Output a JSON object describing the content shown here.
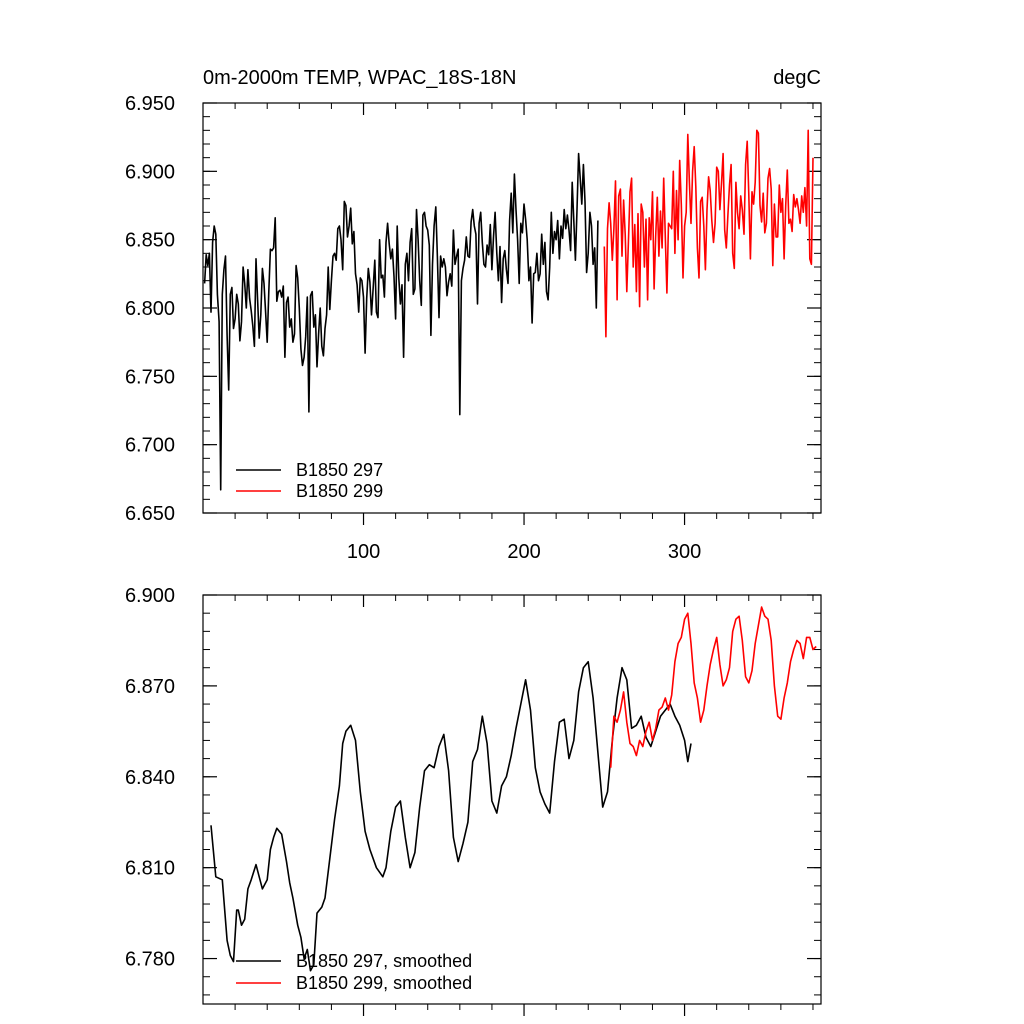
{
  "chart_data": [
    {
      "type": "line",
      "title": "0m-2000m TEMP, WPAC_18S-18N",
      "units": "degC",
      "xlabel": "",
      "ylabel": "",
      "xlim": [
        0,
        385
      ],
      "ylim": [
        6.65,
        6.95
      ],
      "x_ticks": [
        100,
        200,
        300
      ],
      "x_tick_labels": [
        "100",
        "200",
        "300"
      ],
      "y_ticks": [
        6.65,
        6.7,
        6.75,
        6.8,
        6.85,
        6.9,
        6.95
      ],
      "y_tick_labels": [
        "6.650",
        "6.700",
        "6.750",
        "6.800",
        "6.850",
        "6.900",
        "6.950"
      ],
      "legend_position": "bottom-left",
      "series": [
        {
          "name": "B1850 297",
          "color": "#000000",
          "x_start": 1,
          "values": [
            6.818,
            6.839,
            6.831,
            6.84,
            6.797,
            6.848,
            6.86,
            6.854,
            6.81,
            6.79,
            6.667,
            6.81,
            6.828,
            6.838,
            6.78,
            6.74,
            6.81,
            6.815,
            6.785,
            6.792,
            6.81,
            6.803,
            6.776,
            6.79,
            6.83,
            6.818,
            6.8,
            6.828,
            6.807,
            6.798,
            6.787,
            6.772,
            6.836,
            6.806,
            6.778,
            6.795,
            6.829,
            6.818,
            6.797,
            6.775,
            6.812,
            6.843,
            6.842,
            6.844,
            6.866,
            6.805,
            6.812,
            6.813,
            6.808,
            6.816,
            6.764,
            6.804,
            6.808,
            6.786,
            6.792,
            6.775,
            6.781,
            6.831,
            6.822,
            6.8,
            6.77,
            6.758,
            6.764,
            6.779,
            6.808,
            6.724,
            6.809,
            6.812,
            6.786,
            6.795,
            6.757,
            6.781,
            6.8,
            6.772,
            6.765,
            6.785,
            6.795,
            6.83,
            6.799,
            6.82,
            6.838,
            6.84,
            6.835,
            6.858,
            6.86,
            6.85,
            6.828,
            6.878,
            6.875,
            6.852,
            6.86,
            6.873,
            6.847,
            6.856,
            6.825,
            6.817,
            6.797,
            6.822,
            6.82,
            6.808,
            6.767,
            6.807,
            6.829,
            6.819,
            6.795,
            6.815,
            6.835,
            6.797,
            6.793,
            6.85,
            6.822,
            6.824,
            6.808,
            6.848,
            6.862,
            6.847,
            6.836,
            6.843,
            6.823,
            6.792,
            6.86,
            6.822,
            6.803,
            6.817,
            6.764,
            6.832,
            6.84,
            6.82,
            6.848,
            6.858,
            6.81,
            6.814,
            6.872,
            6.85,
            6.82,
            6.802,
            6.868,
            6.87,
            6.86,
            6.857,
            6.846,
            6.78,
            6.832,
            6.86,
            6.874,
            6.837,
            6.793,
            6.838,
            6.83,
            6.836,
            6.83,
            6.809,
            6.819,
            6.825,
            6.816,
            6.857,
            6.832,
            6.838,
            6.843,
            6.722,
            6.82,
            6.829,
            6.835,
            6.852,
            6.838,
            6.837,
            6.863,
            6.872,
            6.86,
            6.854,
            6.803,
            6.862,
            6.87,
            6.848,
            6.832,
            6.83,
            6.846,
            6.839,
            6.861,
            6.828,
            6.852,
            6.87,
            6.84,
            6.82,
            6.845,
            6.804,
            6.836,
            6.842,
            6.828,
            6.818,
            6.864,
            6.884,
            6.855,
            6.898,
            6.872,
            6.85,
            6.818,
            6.862,
            6.855,
            6.876,
            6.865,
            6.85,
            6.82,
            6.83,
            6.789,
            6.825,
            6.826,
            6.84,
            6.82,
            6.825,
            6.854,
            6.832,
            6.848,
            6.812,
            6.806,
            6.83,
            6.87,
            6.84,
            6.856,
            6.85,
            6.864,
            6.836,
            6.86,
            6.851,
            6.872,
            6.858,
            6.868,
            6.857,
            6.842,
            6.892,
            6.864,
            6.835,
            6.872,
            6.913,
            6.895,
            6.876,
            6.905,
            6.878,
            6.826,
            6.84,
            6.87,
            6.86,
            6.832,
            6.844,
            6.8,
            6.864
          ],
          "smoothed_label": "B1850 297, smoothed"
        },
        {
          "name": "B1850 299",
          "color": "#ff0000",
          "x_start": 250,
          "values": [
            6.845,
            6.779,
            6.858,
            6.877,
            6.862,
            6.835,
            6.858,
            6.893,
            6.806,
            6.882,
            6.887,
            6.838,
            6.879,
            6.854,
            6.812,
            6.848,
            6.885,
            6.895,
            6.83,
            6.861,
            6.812,
            6.869,
            6.801,
            6.876,
            6.87,
            6.83,
            6.865,
            6.806,
            6.866,
            6.85,
            6.885,
            6.814,
            6.853,
            6.881,
            6.838,
            6.871,
            6.844,
            6.895,
            6.852,
            6.811,
            6.862,
            6.86,
            6.858,
            6.9,
            6.84,
            6.886,
            6.85,
            6.908,
            6.876,
            6.822,
            6.86,
            6.87,
            6.927,
            6.892,
            6.862,
            6.9,
            6.918,
            6.889,
            6.844,
            6.822,
            6.878,
            6.881,
            6.86,
            6.828,
            6.872,
            6.896,
            6.886,
            6.864,
            6.848,
            6.862,
            6.903,
            6.9,
            6.872,
            6.891,
            6.913,
            6.857,
            6.844,
            6.868,
            6.89,
            6.905,
            6.84,
            6.829,
            6.892,
            6.87,
            6.858,
            6.882,
            6.872,
            6.854,
            6.905,
            6.922,
            6.883,
            6.836,
            6.885,
            6.876,
            6.892,
            6.93,
            6.928,
            6.875,
            6.863,
            6.884,
            6.855,
            6.862,
            6.895,
            6.902,
            6.887,
            6.831,
            6.876,
            6.852,
            6.852,
            6.89,
            6.87,
            6.88,
            6.836,
            6.875,
            6.901,
            6.862,
            6.865,
            6.856,
            6.883,
            6.874,
            6.88,
            6.872,
            6.862,
            6.882,
            6.87,
            6.888,
            6.86,
            6.93,
            6.836,
            6.832,
            6.91
          ],
          "smoothed_label": "B1850 299, smoothed"
        }
      ]
    },
    {
      "type": "line",
      "title": "",
      "xlabel": "",
      "ylabel": "",
      "xlim": [
        0,
        385
      ],
      "ylim": [
        6.765,
        6.9
      ],
      "x_ticks": [
        100,
        200,
        300
      ],
      "y_ticks": [
        6.78,
        6.81,
        6.84,
        6.87,
        6.9
      ],
      "y_tick_labels": [
        "6.780",
        "6.810",
        "6.840",
        "6.870",
        "6.900"
      ],
      "legend_position": "bottom-left",
      "series": [
        {
          "name": "B1850 297, smoothed",
          "color": "#000000",
          "x": [
            5,
            8,
            12,
            15,
            17,
            19,
            21,
            22,
            24,
            26,
            28,
            30,
            33,
            35,
            37,
            40,
            42,
            44,
            46,
            49,
            52,
            54,
            56,
            59,
            61,
            63,
            65,
            67,
            69,
            71,
            74,
            76,
            79,
            82,
            85,
            87,
            89,
            92,
            95,
            98,
            101,
            104,
            108,
            112,
            114,
            117,
            120,
            123,
            126,
            129,
            132,
            135,
            138,
            141,
            144,
            147,
            150,
            153,
            156,
            159,
            162,
            165,
            168,
            171,
            174,
            177,
            180,
            183,
            186,
            189,
            192,
            195,
            198,
            201,
            204,
            207,
            210,
            213,
            216,
            219,
            222,
            225,
            228,
            231,
            234,
            237,
            240,
            243,
            246,
            249,
            252,
            255,
            258,
            261,
            264,
            267,
            270,
            273,
            276,
            279,
            282,
            285,
            288,
            291,
            294,
            297,
            300,
            302,
            304
          ],
          "y": [
            6.824,
            6.807,
            6.806,
            6.786,
            6.781,
            6.779,
            6.796,
            6.796,
            6.791,
            6.793,
            6.803,
            6.806,
            6.811,
            6.807,
            6.803,
            6.806,
            6.816,
            6.82,
            6.823,
            6.821,
            6.812,
            6.805,
            6.8,
            6.791,
            6.787,
            6.78,
            6.783,
            6.776,
            6.778,
            6.795,
            6.797,
            6.8,
            6.813,
            6.826,
            6.837,
            6.851,
            6.855,
            6.857,
            6.852,
            6.835,
            6.822,
            6.816,
            6.81,
            6.807,
            6.81,
            6.822,
            6.83,
            6.832,
            6.82,
            6.81,
            6.815,
            6.83,
            6.842,
            6.844,
            6.843,
            6.85,
            6.854,
            6.842,
            6.82,
            6.812,
            6.818,
            6.825,
            6.845,
            6.849,
            6.86,
            6.851,
            6.832,
            6.828,
            6.837,
            6.84,
            6.847,
            6.856,
            6.864,
            6.872,
            6.862,
            6.843,
            6.835,
            6.831,
            6.828,
            6.845,
            6.858,
            6.859,
            6.846,
            6.852,
            6.868,
            6.876,
            6.878,
            6.866,
            6.848,
            6.83,
            6.835,
            6.852,
            6.866,
            6.876,
            6.872,
            6.856,
            6.857,
            6.86,
            6.853,
            6.85,
            6.855,
            6.86,
            6.862,
            6.864,
            6.86,
            6.857,
            6.852,
            6.845,
            6.851
          ]
        },
        {
          "name": "B1850 299, smoothed",
          "color": "#ff0000",
          "x": [
            254,
            256,
            258,
            260,
            262,
            264,
            266,
            268,
            270,
            272,
            274,
            276,
            278,
            280,
            282,
            284,
            286,
            288,
            290,
            292,
            294,
            296,
            298,
            300,
            302,
            304,
            306,
            308,
            310,
            312,
            314,
            316,
            318,
            320,
            322,
            324,
            326,
            328,
            330,
            332,
            334,
            336,
            338,
            340,
            342,
            344,
            346,
            348,
            350,
            352,
            354,
            356,
            358,
            360,
            362,
            364,
            366,
            368,
            370,
            372,
            374,
            376,
            378,
            380,
            382
          ],
          "y": [
            6.843,
            6.86,
            6.858,
            6.862,
            6.868,
            6.858,
            6.851,
            6.85,
            6.847,
            6.852,
            6.85,
            6.855,
            6.858,
            6.852,
            6.856,
            6.862,
            6.863,
            6.866,
            6.862,
            6.867,
            6.878,
            6.884,
            6.886,
            6.892,
            6.894,
            6.884,
            6.871,
            6.866,
            6.858,
            6.862,
            6.87,
            6.877,
            6.882,
            6.886,
            6.877,
            6.87,
            6.872,
            6.876,
            6.888,
            6.892,
            6.893,
            6.885,
            6.873,
            6.871,
            6.875,
            6.884,
            6.89,
            6.896,
            6.893,
            6.892,
            6.885,
            6.87,
            6.86,
            6.859,
            6.866,
            6.871,
            6.878,
            6.882,
            6.885,
            6.884,
            6.879,
            6.886,
            6.886,
            6.882,
            6.883
          ]
        }
      ]
    }
  ]
}
